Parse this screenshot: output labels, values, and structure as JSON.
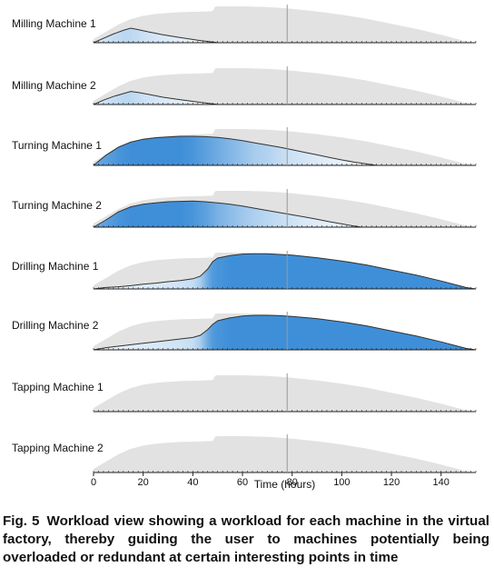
{
  "chart_data": {
    "type": "area",
    "x_unit": "hours",
    "xlabel": "Time (hours)",
    "xlim": [
      0,
      154
    ],
    "xticks": [
      0,
      20,
      40,
      60,
      80,
      100,
      120,
      140
    ],
    "current_time": 78,
    "background_series": {
      "description": "total factory workload (grey)",
      "color": "#e2e2e2",
      "x": [
        0,
        5,
        10,
        15,
        20,
        25,
        30,
        35,
        40,
        45,
        48,
        49,
        50,
        55,
        60,
        65,
        70,
        75,
        80,
        90,
        100,
        110,
        120,
        130,
        140,
        150,
        154
      ],
      "y": [
        0.1,
        0.3,
        0.5,
        0.65,
        0.74,
        0.79,
        0.82,
        0.84,
        0.85,
        0.86,
        0.87,
        0.99,
        1.0,
        1.0,
        1.0,
        0.99,
        0.98,
        0.96,
        0.93,
        0.86,
        0.77,
        0.66,
        0.52,
        0.38,
        0.22,
        0.04,
        0.0
      ]
    },
    "series": [
      {
        "name": "Milling Machine 1",
        "x": [
          0,
          4,
          8,
          12,
          15,
          18,
          22,
          28,
          35,
          42,
          49,
          50
        ],
        "y": [
          0.0,
          0.12,
          0.24,
          0.34,
          0.4,
          0.36,
          0.3,
          0.22,
          0.14,
          0.07,
          0.01,
          0.0
        ],
        "intensity": [
          0.2,
          0.25,
          0.3,
          0.35,
          0.35,
          0.3,
          0.25,
          0.2,
          0.15,
          0.1,
          0.05,
          0.0
        ]
      },
      {
        "name": "Milling Machine 2",
        "x": [
          0,
          4,
          8,
          12,
          15,
          18,
          22,
          28,
          35,
          42,
          49,
          50
        ],
        "y": [
          0.0,
          0.12,
          0.22,
          0.3,
          0.36,
          0.33,
          0.28,
          0.2,
          0.13,
          0.07,
          0.01,
          0.0
        ],
        "intensity": [
          0.2,
          0.25,
          0.3,
          0.35,
          0.35,
          0.3,
          0.25,
          0.2,
          0.15,
          0.1,
          0.05,
          0.0
        ]
      },
      {
        "name": "Turning Machine 1",
        "x": [
          0,
          5,
          10,
          15,
          20,
          25,
          30,
          35,
          40,
          45,
          50,
          55,
          60,
          65,
          70,
          75,
          80,
          85,
          90,
          95,
          100,
          105,
          110,
          114,
          154
        ],
        "y": [
          0.0,
          0.28,
          0.5,
          0.64,
          0.72,
          0.76,
          0.78,
          0.8,
          0.8,
          0.79,
          0.77,
          0.73,
          0.68,
          0.62,
          0.56,
          0.5,
          0.43,
          0.36,
          0.29,
          0.22,
          0.15,
          0.09,
          0.04,
          0.0,
          0.0
        ],
        "intensity": [
          0.75,
          0.85,
          0.95,
          1.0,
          1.0,
          1.0,
          1.0,
          1.0,
          0.95,
          0.85,
          0.75,
          0.65,
          0.55,
          0.45,
          0.4,
          0.32,
          0.26,
          0.22,
          0.18,
          0.15,
          0.12,
          0.1,
          0.08,
          0.0,
          0.0
        ]
      },
      {
        "name": "Turning Machine 2",
        "x": [
          0,
          5,
          10,
          15,
          20,
          25,
          30,
          35,
          40,
          45,
          50,
          55,
          60,
          65,
          70,
          75,
          80,
          85,
          90,
          95,
          100,
          105,
          108,
          154
        ],
        "y": [
          0.0,
          0.2,
          0.42,
          0.56,
          0.63,
          0.67,
          0.7,
          0.71,
          0.72,
          0.7,
          0.67,
          0.63,
          0.58,
          0.52,
          0.46,
          0.4,
          0.34,
          0.28,
          0.22,
          0.15,
          0.09,
          0.03,
          0.0,
          0.0
        ],
        "intensity": [
          0.7,
          0.85,
          0.95,
          1.0,
          1.0,
          1.0,
          1.0,
          1.0,
          0.95,
          0.85,
          0.7,
          0.6,
          0.5,
          0.42,
          0.36,
          0.3,
          0.25,
          0.2,
          0.16,
          0.12,
          0.1,
          0.08,
          0.0,
          0.0
        ]
      },
      {
        "name": "Drilling Machine 1",
        "x": [
          0,
          5,
          10,
          15,
          20,
          25,
          30,
          35,
          40,
          43,
          46,
          48,
          50,
          55,
          60,
          65,
          70,
          75,
          80,
          90,
          100,
          110,
          120,
          130,
          140,
          150,
          154
        ],
        "y": [
          0.0,
          0.04,
          0.06,
          0.09,
          0.13,
          0.16,
          0.2,
          0.23,
          0.28,
          0.35,
          0.55,
          0.75,
          0.85,
          0.92,
          0.96,
          0.97,
          0.97,
          0.95,
          0.93,
          0.86,
          0.77,
          0.66,
          0.52,
          0.38,
          0.22,
          0.04,
          0.0
        ],
        "intensity": [
          0.1,
          0.12,
          0.14,
          0.16,
          0.18,
          0.2,
          0.22,
          0.25,
          0.3,
          0.45,
          0.75,
          0.9,
          0.95,
          1.0,
          1.0,
          1.0,
          1.0,
          1.0,
          1.0,
          1.0,
          1.0,
          1.0,
          1.0,
          1.0,
          1.0,
          1.0,
          1.0
        ]
      },
      {
        "name": "Drilling Machine 2",
        "x": [
          0,
          5,
          10,
          15,
          20,
          25,
          30,
          35,
          40,
          43,
          46,
          48,
          50,
          55,
          60,
          65,
          70,
          75,
          80,
          90,
          100,
          110,
          120,
          130,
          140,
          150,
          154
        ],
        "y": [
          0.0,
          0.06,
          0.1,
          0.14,
          0.18,
          0.22,
          0.26,
          0.3,
          0.34,
          0.4,
          0.56,
          0.7,
          0.8,
          0.88,
          0.93,
          0.95,
          0.95,
          0.94,
          0.92,
          0.86,
          0.77,
          0.66,
          0.52,
          0.38,
          0.22,
          0.04,
          0.0
        ],
        "intensity": [
          0.1,
          0.12,
          0.14,
          0.16,
          0.18,
          0.2,
          0.22,
          0.25,
          0.3,
          0.45,
          0.75,
          0.9,
          0.95,
          1.0,
          1.0,
          1.0,
          1.0,
          1.0,
          1.0,
          1.0,
          1.0,
          1.0,
          1.0,
          1.0,
          1.0,
          1.0,
          1.0
        ]
      },
      {
        "name": "Tapping Machine 1",
        "x": [
          0,
          154
        ],
        "y": [
          0.0,
          0.0
        ],
        "intensity": [
          0.0,
          0.0
        ]
      },
      {
        "name": "Tapping Machine 2",
        "x": [
          0,
          154
        ],
        "y": [
          0.0,
          0.0
        ],
        "intensity": [
          0.0,
          0.0
        ]
      }
    ],
    "colors": {
      "workload_full": "#3f8fd8",
      "workload_empty": "#ffffff",
      "outline": "#333333",
      "time_marker": "#999999"
    }
  },
  "caption": {
    "label": "Fig. 5",
    "text": "Workload view showing a workload for each machine in the virtual factory, thereby guiding the user to machines potentially being overloaded or redundant at certain interesting points in time"
  }
}
